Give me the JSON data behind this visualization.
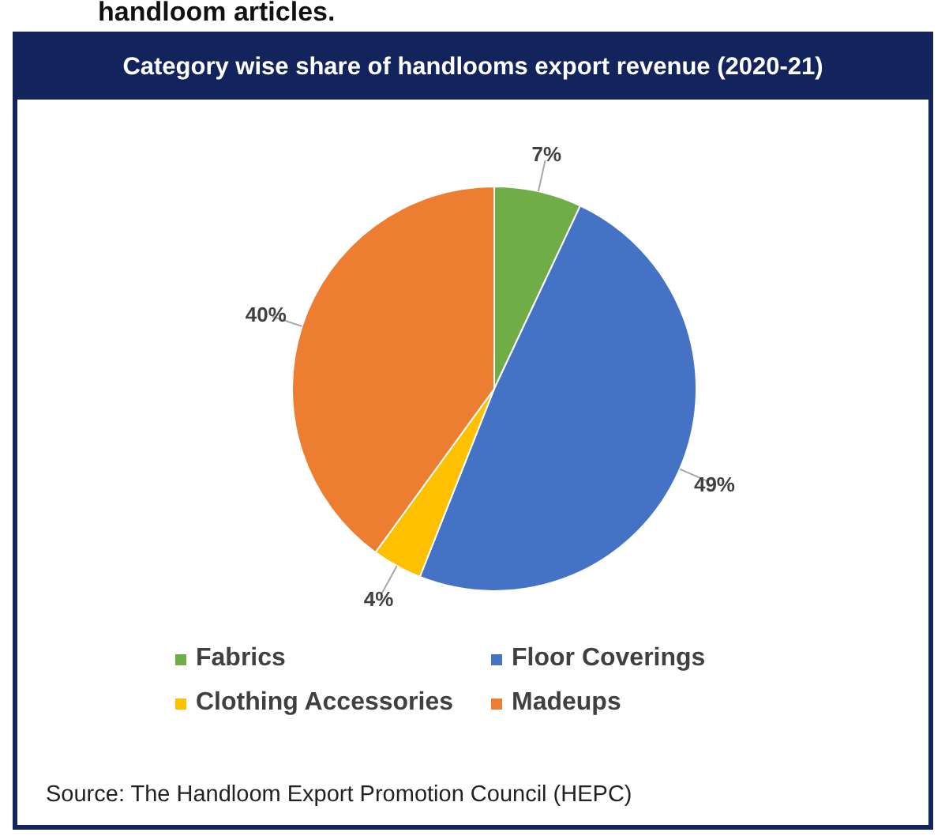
{
  "chart_data": {
    "type": "pie",
    "title": "Category wise share of handlooms export revenue (2020-21)",
    "categories": [
      "Fabrics",
      "Floor Coverings",
      "Clothing Accessories",
      "Madeups"
    ],
    "values": [
      7,
      49,
      4,
      40
    ],
    "value_labels": [
      "7%",
      "49%",
      "4%",
      "40%"
    ],
    "colors": [
      "#70ad47",
      "#4472c4",
      "#ffc000",
      "#ed7d31"
    ],
    "legend": "bottom",
    "annotations": [
      "handloom articles.",
      "Source: The Handloom Export Promotion Council (HEPC)"
    ]
  }
}
